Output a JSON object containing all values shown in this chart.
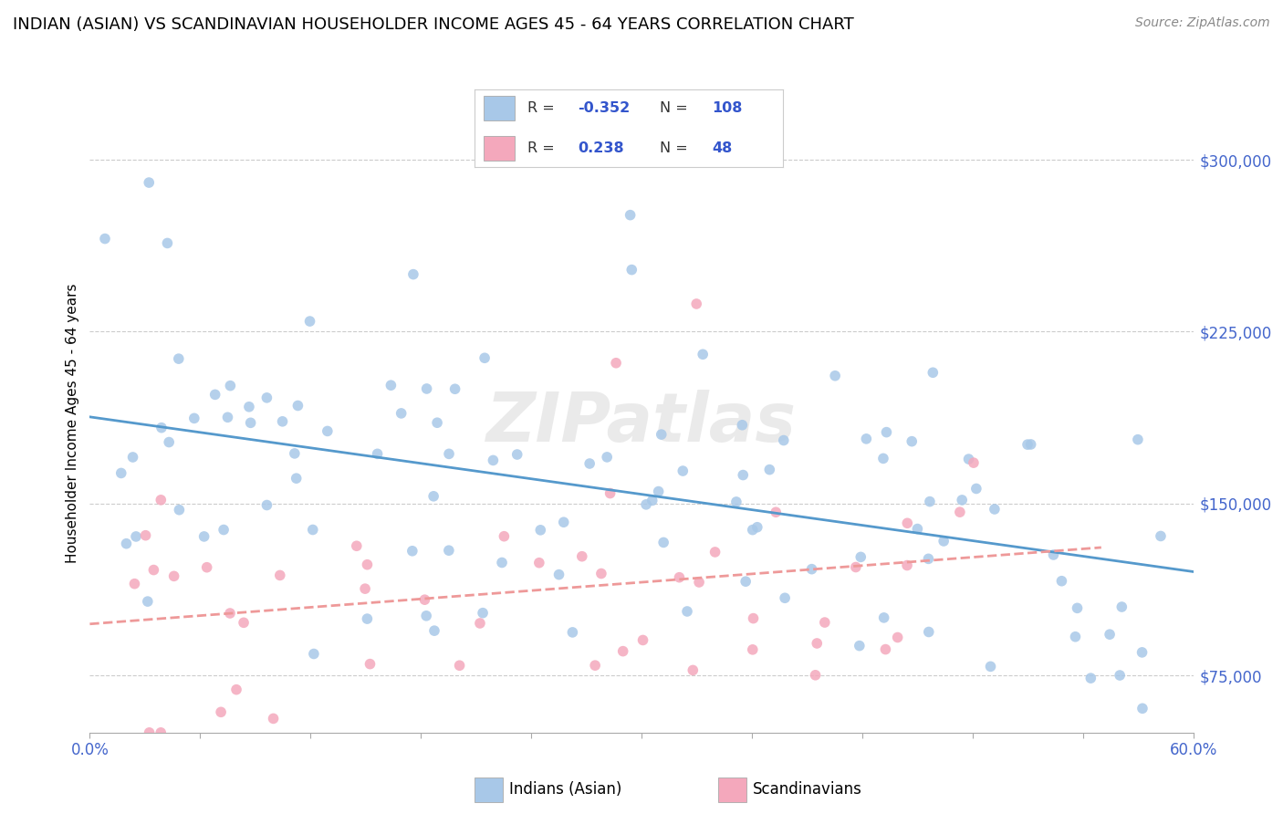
{
  "title": "INDIAN (ASIAN) VS SCANDINAVIAN HOUSEHOLDER INCOME AGES 45 - 64 YEARS CORRELATION CHART",
  "source": "Source: ZipAtlas.com",
  "ylabel": "Householder Income Ages 45 - 64 years",
  "yticks": [
    75000,
    150000,
    225000,
    300000
  ],
  "ytick_labels": [
    "$75,000",
    "$150,000",
    "$225,000",
    "$300,000"
  ],
  "watermark": "ZIPatlas",
  "r1": "-0.352",
  "n1": "108",
  "r2": "0.238",
  "n2": "48",
  "color_indian": "#a8c8e8",
  "color_scandinavian": "#f4a8bc",
  "color_indian_line": "#5599cc",
  "color_scandinavian_line": "#ee9999",
  "color_blue_text": "#4466cc",
  "color_r_value": "#3355cc",
  "background_color": "#ffffff",
  "grid_color": "#cccccc",
  "title_fontsize": 13,
  "legend_label1": "Indians (Asian)",
  "legend_label2": "Scandinavians",
  "xlim": [
    0,
    60
  ],
  "ylim": [
    50000,
    320000
  ],
  "xticklabels_left": "0.0%",
  "xticklabels_right": "60.0%"
}
